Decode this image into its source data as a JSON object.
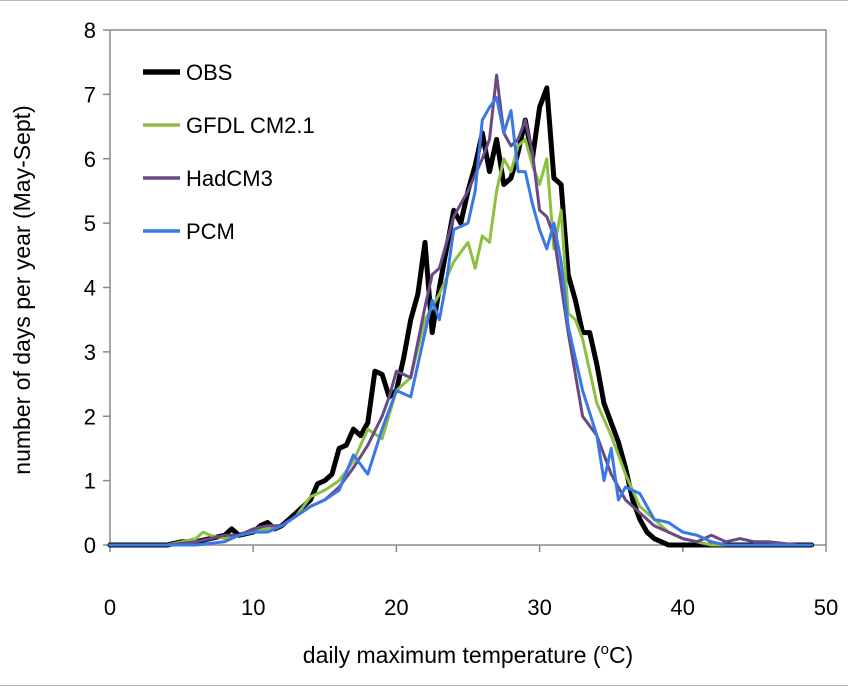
{
  "chart_data": {
    "type": "line",
    "title": "",
    "xlabel": "daily maximum temperature (",
    "xlabel_unit_sup": "o",
    "xlabel_unit": "C)",
    "ylabel": "number of days per year (May-Sept)",
    "xlim": [
      0,
      50
    ],
    "ylim": [
      0,
      8
    ],
    "xticks": [
      0,
      10,
      20,
      30,
      40,
      50
    ],
    "yticks": [
      0,
      1,
      2,
      3,
      4,
      5,
      6,
      7,
      8
    ],
    "grid": false,
    "legend_position": "top-left",
    "series": [
      {
        "name": "OBS",
        "color": "#000000",
        "width": 5,
        "x": [
          0,
          2,
          4,
          5,
          6,
          7,
          8,
          8.5,
          9,
          10,
          10.5,
          11,
          11.5,
          12,
          13,
          14,
          14.5,
          15,
          15.5,
          16,
          16.5,
          17,
          17.5,
          18,
          18.5,
          19,
          19.5,
          20,
          20.5,
          21,
          21.5,
          22,
          22.5,
          23,
          23.5,
          24,
          24.5,
          25,
          25.5,
          26,
          26.5,
          27,
          27.5,
          28,
          28.5,
          29,
          29.5,
          30,
          30.5,
          31,
          31.5,
          32,
          32.5,
          33,
          33.5,
          34,
          34.5,
          35,
          35.5,
          36,
          36.5,
          37,
          37.5,
          38,
          38.5,
          39,
          40,
          41,
          42,
          44,
          46,
          48,
          49
        ],
        "y": [
          0,
          0,
          0,
          0.05,
          0.05,
          0.1,
          0.15,
          0.25,
          0.15,
          0.2,
          0.3,
          0.35,
          0.25,
          0.3,
          0.5,
          0.7,
          0.95,
          1.0,
          1.1,
          1.5,
          1.55,
          1.8,
          1.7,
          1.9,
          2.7,
          2.65,
          2.3,
          2.4,
          2.9,
          3.5,
          3.9,
          4.7,
          3.3,
          4.0,
          4.6,
          5.2,
          5.0,
          5.5,
          5.9,
          6.4,
          5.8,
          6.3,
          5.6,
          5.7,
          6.1,
          6.6,
          6.0,
          6.8,
          7.1,
          5.7,
          5.6,
          4.2,
          3.8,
          3.3,
          3.3,
          2.8,
          2.2,
          1.9,
          1.6,
          1.2,
          0.7,
          0.4,
          0.2,
          0.1,
          0.05,
          0,
          0,
          0,
          0,
          0,
          0,
          0,
          0
        ]
      },
      {
        "name": "GFDL CM2.1",
        "color": "#8dc040",
        "width": 3,
        "x": [
          0,
          2,
          4,
          5,
          6,
          6.5,
          7,
          8,
          9,
          10,
          11,
          12,
          13,
          14,
          15,
          16,
          17,
          18,
          19,
          20,
          21,
          22,
          23,
          24,
          25,
          25.5,
          26,
          26.5,
          27,
          27.5,
          28,
          28.5,
          29,
          29.5,
          30,
          30.5,
          31,
          31.5,
          32,
          32.5,
          33,
          34,
          35,
          36,
          37,
          38,
          39,
          40,
          42,
          44,
          46,
          48,
          49
        ],
        "y": [
          0,
          0,
          0,
          0.05,
          0.1,
          0.2,
          0.15,
          0.1,
          0.15,
          0.2,
          0.25,
          0.3,
          0.45,
          0.75,
          0.85,
          1.0,
          1.3,
          1.8,
          1.65,
          2.4,
          2.6,
          3.5,
          3.9,
          4.4,
          4.7,
          4.3,
          4.8,
          4.7,
          5.5,
          6.0,
          5.8,
          6.2,
          6.3,
          5.9,
          5.6,
          6.0,
          4.6,
          5.2,
          3.6,
          3.5,
          3.2,
          2.2,
          1.7,
          1.1,
          0.6,
          0.4,
          0.2,
          0.1,
          0,
          0,
          0,
          0,
          0
        ]
      },
      {
        "name": "HadCM3",
        "color": "#6a4a86",
        "width": 3,
        "x": [
          0,
          2,
          4,
          6,
          7,
          8,
          9,
          10,
          11,
          12,
          13,
          14,
          15,
          16,
          17,
          18,
          19,
          19.5,
          20,
          21,
          22,
          22.5,
          23,
          24,
          25,
          26,
          26.5,
          27,
          27.5,
          28,
          28.5,
          29,
          29.5,
          30,
          30.5,
          31,
          32,
          33,
          34,
          35,
          36,
          37,
          38,
          39,
          40,
          41,
          42,
          43,
          44,
          45,
          46,
          48,
          49
        ],
        "y": [
          0,
          0,
          0,
          0.05,
          0.1,
          0.15,
          0.15,
          0.25,
          0.3,
          0.3,
          0.45,
          0.6,
          0.7,
          0.9,
          1.2,
          1.55,
          2.0,
          2.3,
          2.7,
          2.6,
          3.7,
          4.2,
          4.3,
          5.1,
          5.5,
          6.0,
          6.3,
          7.3,
          6.4,
          6.2,
          6.3,
          6.6,
          6.1,
          5.2,
          5.1,
          4.8,
          3.3,
          2.0,
          1.7,
          1.1,
          0.7,
          0.5,
          0.3,
          0.2,
          0.1,
          0.05,
          0.15,
          0.05,
          0.1,
          0.05,
          0.05,
          0,
          0
        ]
      },
      {
        "name": "PCM",
        "color": "#3a78e6",
        "width": 3,
        "x": [
          0,
          2,
          4,
          6,
          8,
          9,
          10,
          11,
          12,
          13,
          14,
          15,
          16,
          17,
          18,
          19,
          20,
          21,
          22,
          22.5,
          23,
          23.5,
          24,
          25,
          25.5,
          26,
          26.5,
          27,
          27.5,
          28,
          28.5,
          29,
          29.5,
          30,
          30.5,
          31,
          31.5,
          32,
          33,
          34,
          34.5,
          35,
          35.5,
          36,
          37,
          38,
          39,
          40,
          41,
          42,
          43,
          44,
          45,
          46,
          48,
          49
        ],
        "y": [
          0,
          0,
          0,
          0,
          0.05,
          0.15,
          0.2,
          0.2,
          0.3,
          0.45,
          0.6,
          0.7,
          0.85,
          1.4,
          1.1,
          1.8,
          2.4,
          2.3,
          3.3,
          3.8,
          3.5,
          4.1,
          4.9,
          5.0,
          5.5,
          6.6,
          6.8,
          6.95,
          6.4,
          6.75,
          5.8,
          5.8,
          5.3,
          4.9,
          4.6,
          5.0,
          4.4,
          3.4,
          2.4,
          1.7,
          1.0,
          1.5,
          0.7,
          0.9,
          0.8,
          0.4,
          0.35,
          0.2,
          0.15,
          0.05,
          0,
          0,
          0,
          0,
          0,
          0
        ]
      }
    ]
  }
}
